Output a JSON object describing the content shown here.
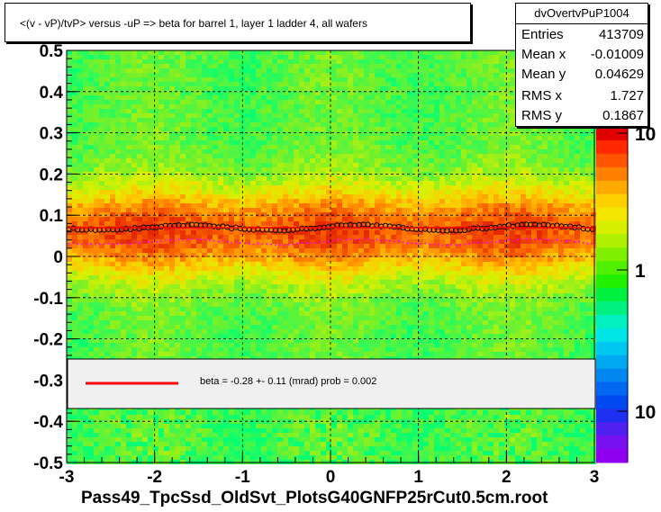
{
  "title": "<(v - vP)/tvP> versus  -uP => beta for barrel 1, layer 1 ladder 4, all wafers",
  "stats": {
    "name": "dvOvertvPuP1004",
    "rows": [
      {
        "label": "Entries",
        "value": "413709"
      },
      {
        "label": "Mean x",
        "value": "-0.01009"
      },
      {
        "label": "Mean y",
        "value": "0.04629"
      },
      {
        "label": "RMS x",
        "value": "1.727"
      },
      {
        "label": "RMS y",
        "value": "0.1867"
      }
    ]
  },
  "fit_legend": "beta =   -0.28 +-  0.11 (mrad) prob = 0.002",
  "x_title": "Pass49_TpcSsd_OldSvt_PlotsG40GNFP25rCut0.5cm.root",
  "colors": {
    "fit_line": "#ff0000",
    "profile_markers": "#000000",
    "magenta_points": "#ff00ff"
  },
  "chart_data": {
    "type": "heatmap",
    "xlim": [
      -3,
      3
    ],
    "ylim": [
      -0.5,
      0.5
    ],
    "x_ticks": [
      "-3",
      "-2",
      "-1",
      "0",
      "1",
      "2",
      "3"
    ],
    "y_ticks": [
      "-0.5",
      "-0.4",
      "-0.3",
      "-0.2",
      "-0.1",
      "0",
      "0.1",
      "0.2",
      "0.3",
      "0.4",
      "0.5"
    ],
    "colorbar_ticks": [
      "10",
      "1",
      "10"
    ],
    "profile_y": 0.07,
    "grid": true,
    "log_z": true
  }
}
